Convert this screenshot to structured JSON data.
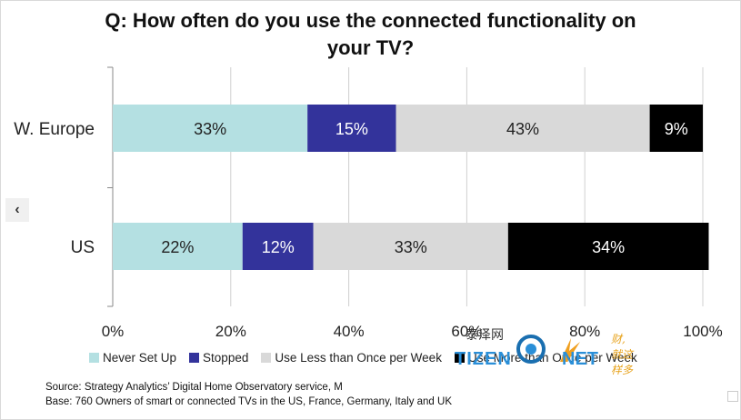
{
  "title_lines": [
    "Q: How often do you use the connected functionality on",
    "your TV?"
  ],
  "nav": {
    "prev_symbol": "‹"
  },
  "chart_data": {
    "type": "bar",
    "orientation": "horizontal",
    "stacked": true,
    "categories": [
      "W. Europe",
      "US"
    ],
    "series": [
      {
        "name": "Never Set Up",
        "values": [
          33,
          22
        ],
        "labels": [
          "33%",
          "22%"
        ],
        "color": "#b4e0e2",
        "label_color": "#222222"
      },
      {
        "name": "Stopped",
        "values": [
          15,
          12
        ],
        "labels": [
          "15%",
          "12%"
        ],
        "color": "#33339b",
        "label_color": "#ffffff"
      },
      {
        "name": "Use Less than Once per Week",
        "values": [
          43,
          33
        ],
        "labels": [
          "43%",
          "33%"
        ],
        "color": "#d9d9d9",
        "label_color": "#222222"
      },
      {
        "name": "Use More than Once per Week",
        "values": [
          9,
          34
        ],
        "labels": [
          "9%",
          "34%"
        ],
        "color": "#000000",
        "label_color": "#ffffff"
      }
    ],
    "xlim": [
      0,
      100
    ],
    "x_ticks": [
      "0%",
      "20%",
      "40%",
      "60%",
      "80%",
      "100%"
    ],
    "grid": true,
    "legend": "bottom"
  },
  "notes": {
    "source": "Source: Strategy Analytics’ Digital  Home Observatory service, M",
    "base": "Base: 760 Owners of smart or connected TVs in the US, France, Germany, Italy and UK"
  },
  "watermark": {
    "cn": "泰泽网",
    "tizen": "TIZEN",
    "net": "NET",
    "slogan": "财, 就这样多"
  }
}
